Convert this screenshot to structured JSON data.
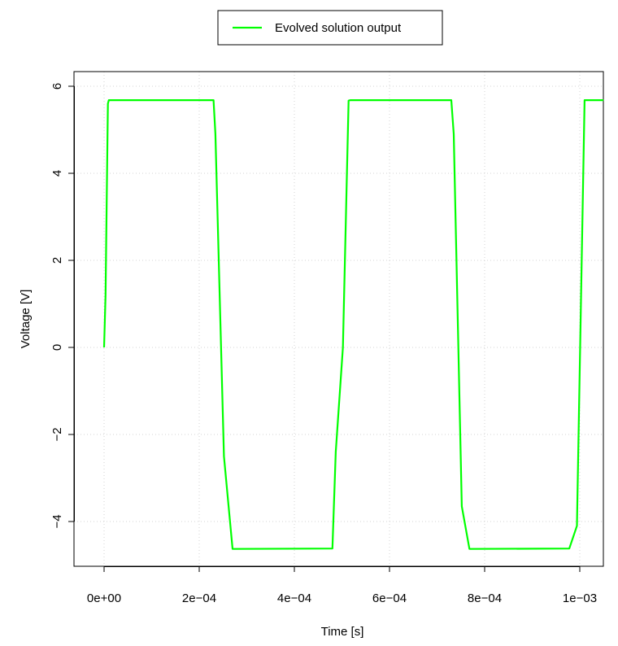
{
  "chart_data": {
    "type": "line",
    "title": "",
    "xlabel": "Time [s]",
    "ylabel": "Voltage [V]",
    "xlim": [
      -4e-05,
      0.00105
    ],
    "ylim": [
      -5.0,
      6.0
    ],
    "x_ticks": [
      0,
      0.0002,
      0.0004,
      0.0006,
      0.0008,
      0.001
    ],
    "x_tick_labels": [
      "0e+00",
      "2e−04",
      "4e−04",
      "6e−04",
      "8e−04",
      "1e−03"
    ],
    "y_ticks": [
      -4,
      -2,
      0,
      2,
      4,
      6
    ],
    "y_tick_labels": [
      "−4",
      "−2",
      "0",
      "2",
      "4",
      "6"
    ],
    "grid": true,
    "legend_position": "top-center",
    "series": [
      {
        "name": "Evolved solution output",
        "color": "#00ff00",
        "x": [
          0,
          3e-06,
          8e-06,
          1e-05,
          0.00023,
          0.000234,
          0.000252,
          0.00027,
          0.00048,
          0.000487,
          0.000502,
          0.000514,
          0.000518,
          0.00073,
          0.000735,
          0.000752,
          0.000768,
          0.000978,
          0.000994,
          0.00101,
          0.00105
        ],
        "y": [
          0,
          1.2,
          5.6,
          5.68,
          5.68,
          4.9,
          -2.5,
          -4.63,
          -4.62,
          -2.4,
          0.0,
          5.67,
          5.68,
          5.68,
          4.9,
          -3.65,
          -4.63,
          -4.62,
          -4.1,
          5.68,
          5.68
        ]
      }
    ]
  }
}
